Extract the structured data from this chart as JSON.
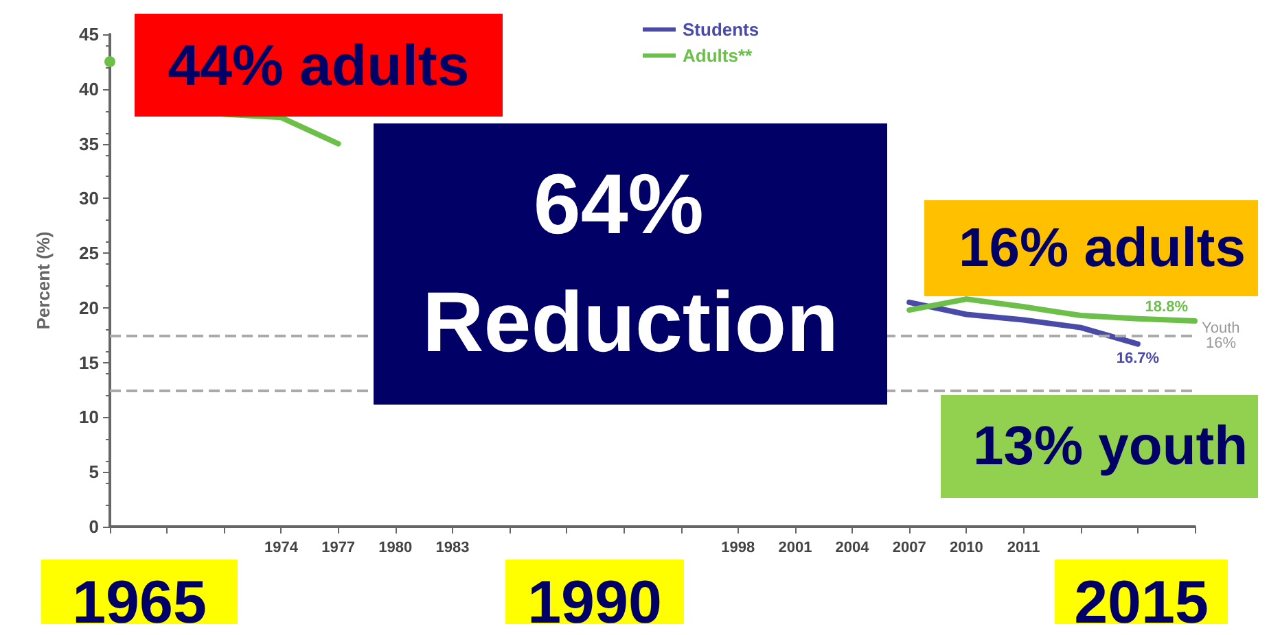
{
  "chart_data": {
    "type": "line",
    "ylabel": "Percent (%)",
    "categories": [
      null,
      null,
      null,
      "1974",
      "1977",
      "1980",
      "1983",
      null,
      null,
      null,
      null,
      "1998",
      "2001",
      "2004",
      "2007",
      "2010",
      "2011",
      null,
      null,
      null
    ],
    "series": [
      {
        "name": "Students",
        "color": "#4a4aa8",
        "values": [
          null,
          null,
          null,
          null,
          null,
          null,
          null,
          null,
          null,
          null,
          null,
          null,
          null,
          null,
          20.5,
          19.4,
          18.9,
          18.2,
          16.7,
          null
        ],
        "value_labels": [
          null,
          null,
          null,
          null,
          null,
          null,
          null,
          null,
          null,
          null,
          null,
          null,
          null,
          null,
          null,
          null,
          null,
          null,
          "16.7%",
          null
        ]
      },
      {
        "name": "Adults**",
        "color": "#6cc04a",
        "values": [
          42.5,
          null,
          37.7,
          37.4,
          35,
          null,
          null,
          null,
          null,
          null,
          null,
          null,
          null,
          null,
          19.8,
          20.8,
          20.1,
          19.3,
          19,
          18.8
        ],
        "value_labels": [
          null,
          null,
          null,
          null,
          null,
          null,
          null,
          null,
          null,
          null,
          null,
          null,
          null,
          null,
          null,
          null,
          null,
          null,
          null,
          "18.8%"
        ]
      }
    ],
    "ylim": [
      0,
      45
    ],
    "yticks": [
      0,
      5,
      10,
      15,
      20,
      25,
      30,
      35,
      40,
      45
    ],
    "grid": false,
    "legend": "top",
    "marker": "none",
    "line_style": "solid",
    "ref_lines": [
      {
        "axis": "y",
        "value": 17.4,
        "label": "Youth 16%",
        "color": "#aaaaaa",
        "line_style": "dashed"
      },
      {
        "axis": "y",
        "value": 12.5,
        "color": "#aaaaaa",
        "line_style": "dashed"
      }
    ],
    "annotations": [
      "44% adults",
      "64% Reduction",
      "16% adults",
      "13% youth",
      "1965",
      "1990",
      "2015"
    ]
  }
}
